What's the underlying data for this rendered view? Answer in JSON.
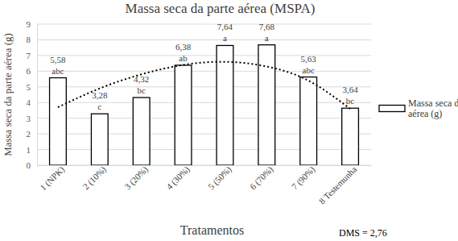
{
  "chart_data": {
    "type": "bar",
    "title": "Massa seca da parte aérea (MSPA)",
    "x_label": "Tratamentos",
    "y_label": "Massa seca da parte aérea (g)",
    "categories": [
      "1 (NPK)",
      "2 (10%)",
      "3 (20%)",
      "4 (30%)",
      "5 (50%)",
      "6 (70%)",
      "7 (90%)",
      "8 Testemunha"
    ],
    "series": [
      {
        "name": "Massa seca da parte aérea (g)",
        "type": "bar",
        "color": "#ffffff",
        "values": [
          5.58,
          3.28,
          4.32,
          6.38,
          7.64,
          7.68,
          5.63,
          3.64
        ],
        "value_labels": [
          "5,58",
          "3,28",
          "4,32",
          "6,38",
          "7,64",
          "7,68",
          "5,63",
          "3,64"
        ],
        "letters": [
          "abc",
          "c",
          "bc",
          "ab",
          "a",
          "a",
          "abc",
          "bc"
        ],
        "data_labels": true
      },
      {
        "type": "line",
        "line_style": "dotted",
        "color": "#000000",
        "values": [
          3.7,
          4.9,
          5.8,
          6.4,
          6.6,
          6.3,
          5.4,
          3.6
        ]
      }
    ],
    "ylim": [
      0,
      9
    ],
    "yticks": [
      0,
      1,
      2,
      3,
      4,
      5,
      6,
      7,
      8,
      9
    ],
    "grid": true,
    "legend": "right",
    "annotation": "DMS = 2,76"
  }
}
